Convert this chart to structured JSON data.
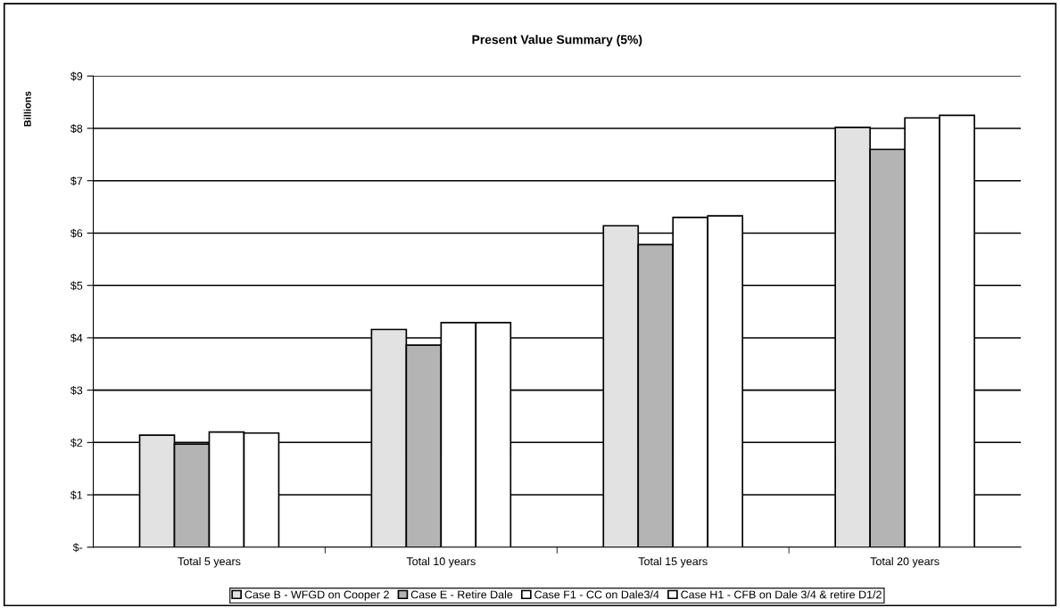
{
  "chart_data": {
    "type": "bar",
    "title": "Present Value Summary (5%)",
    "ylabel": "Billions",
    "categories": [
      "Total 5 years",
      "Total 10 years",
      "Total 15 years",
      "Total 20 years"
    ],
    "series": [
      {
        "name": "Case B - WFGD on Cooper 2",
        "color": "#e2e2e2",
        "values": [
          2.14,
          4.16,
          6.14,
          8.02
        ]
      },
      {
        "name": "Case E - Retire Dale",
        "color": "#b4b4b4",
        "values": [
          1.97,
          3.86,
          5.78,
          7.6
        ]
      },
      {
        "name": "Case F1 - CC on Dale3/4",
        "color": "#ffffff",
        "values": [
          2.2,
          4.29,
          6.3,
          8.2
        ]
      },
      {
        "name": "Case H1 - CFB on Dale 3/4 & retire D1/2",
        "color": "#ffffff",
        "values": [
          2.18,
          4.29,
          6.33,
          8.25
        ]
      }
    ],
    "ylim": [
      0,
      9
    ],
    "yticks": [
      {
        "value": 0,
        "label": "$-"
      },
      {
        "value": 1,
        "label": "$1"
      },
      {
        "value": 2,
        "label": "$2"
      },
      {
        "value": 3,
        "label": "$3"
      },
      {
        "value": 4,
        "label": "$4"
      },
      {
        "value": 5,
        "label": "$5"
      },
      {
        "value": 6,
        "label": "$6"
      },
      {
        "value": 7,
        "label": "$7"
      },
      {
        "value": 8,
        "label": "$8"
      },
      {
        "value": 9,
        "label": "$9"
      }
    ],
    "grid": "y",
    "legend": "bottom"
  }
}
